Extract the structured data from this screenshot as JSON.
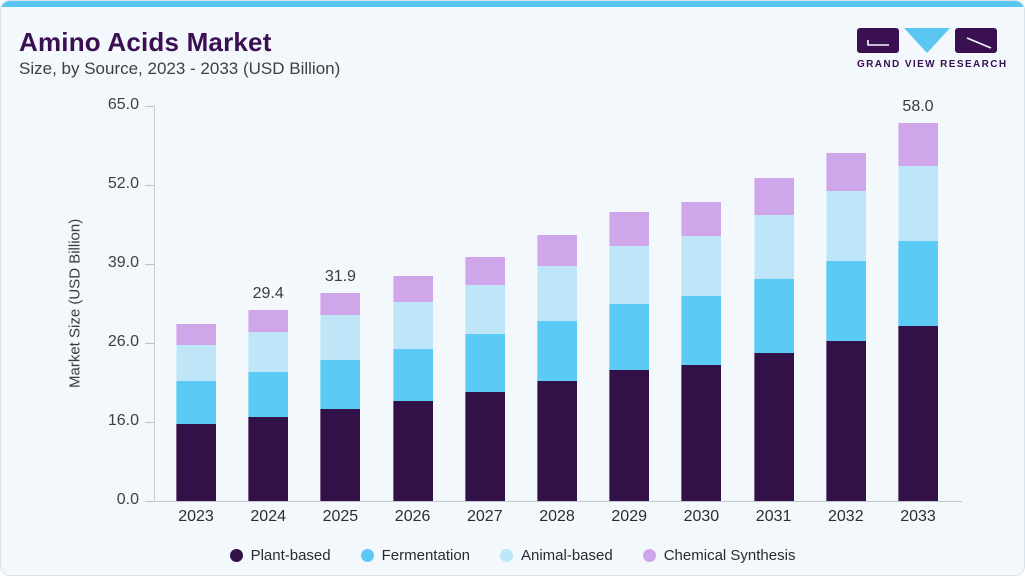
{
  "header": {
    "title": "Amino Acids Market",
    "subtitle": "Size, by Source, 2023 - 2033 (USD Billion)"
  },
  "logo": {
    "text": "GRAND VIEW RESEARCH"
  },
  "theme": {
    "accent_blue": "#5BC6F0",
    "brand_purple": "#3A1053",
    "card_background": "#F3F8FC",
    "axis_line": "#C2C7CD"
  },
  "chart_data": {
    "type": "bar",
    "subtype": "stacked-vertical",
    "title": "Amino Acids Market",
    "subtitle": "Size, by Source, 2023 - 2033 (USD Billion)",
    "xlabel": "",
    "ylabel": "Market Size (USD Billion)",
    "y_ticks": [
      "65.0",
      "52.0",
      "39.0",
      "26.0",
      "16.0",
      "0.0"
    ],
    "ylim": [
      0,
      65
    ],
    "grid": false,
    "legend_position": "bottom",
    "categories": [
      "2023",
      "2024",
      "2025",
      "2026",
      "2027",
      "2028",
      "2029",
      "2030",
      "2031",
      "2032",
      "2033"
    ],
    "series": [
      {
        "name": "Plant-based",
        "color": "#321149",
        "values": [
          11.8,
          12.9,
          14.2,
          15.4,
          16.8,
          18.4,
          20.1,
          20.9,
          22.7,
          24.6,
          26.9
        ]
      },
      {
        "name": "Fermentation",
        "color": "#5BCAF4",
        "values": [
          6.6,
          6.9,
          7.4,
          8.0,
          8.8,
          9.3,
          10.1,
          10.6,
          11.4,
          12.3,
          13.0
        ]
      },
      {
        "name": "Animal-based",
        "color": "#BFE6F8",
        "values": [
          5.5,
          6.1,
          6.9,
          7.2,
          7.6,
          8.4,
          9.0,
          9.2,
          9.9,
          10.7,
          11.6
        ]
      },
      {
        "name": "Chemical Synthesis",
        "color": "#CFA6E9",
        "values": [
          3.3,
          3.5,
          3.4,
          4.0,
          4.3,
          4.7,
          5.2,
          5.2,
          5.6,
          5.9,
          6.5
        ]
      }
    ],
    "totals": [
      27.2,
      29.4,
      31.9,
      34.6,
      37.5,
      40.8,
      44.4,
      45.9,
      49.6,
      53.5,
      58.0
    ],
    "total_labels": {
      "2024": "29.4",
      "2025": "31.9",
      "2033": "58.0"
    }
  }
}
